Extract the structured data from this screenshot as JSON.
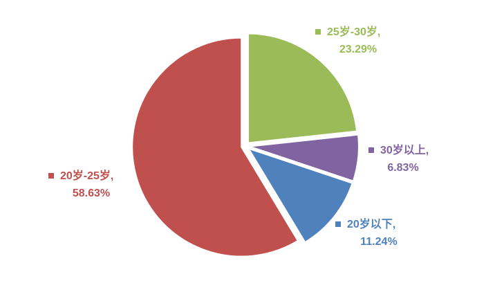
{
  "chart_data": {
    "type": "pie",
    "categories": [
      "25岁-30岁,",
      "30岁以上,",
      "20岁以下,",
      "20岁-25岁,"
    ],
    "values": [
      23.29,
      6.83,
      11.24,
      58.63
    ],
    "value_labels": [
      "23.29%",
      "6.83%",
      "11.24%",
      "58.63%"
    ],
    "colors": [
      "#9bbb59",
      "#8064a2",
      "#4f81bd",
      "#c0504d"
    ]
  }
}
